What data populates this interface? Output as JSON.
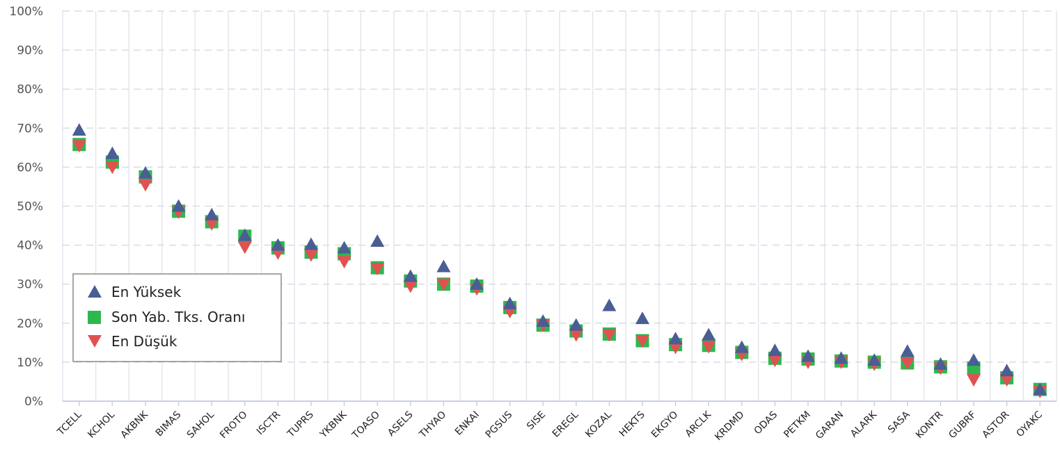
{
  "chart_data": {
    "type": "scatter",
    "categories": [
      "TCELL",
      "KCHOL",
      "AKBNK",
      "BIMAS",
      "SAHOL",
      "FROTO",
      "ISCTR",
      "TUPRS",
      "YKBNK",
      "TOASO",
      "ASELS",
      "THYAO",
      "ENKAI",
      "PGSUS",
      "SISE",
      "EREGL",
      "KOZAL",
      "HEKTS",
      "EKGYO",
      "ARCLK",
      "KRDMD",
      "ODAS",
      "PETKM",
      "GARAN",
      "ALARK",
      "SASA",
      "KONTR",
      "GUBRF",
      "ASTOR",
      "OYAKC"
    ],
    "series": [
      {
        "name": "En Yüksek",
        "marker": "triangle-up",
        "color": "#4a5d95",
        "values": [
          69.5,
          63.5,
          58.5,
          50.0,
          47.8,
          42.5,
          40.0,
          40.2,
          39.3,
          41.0,
          32.0,
          34.5,
          30.0,
          25.0,
          20.5,
          19.5,
          24.5,
          21.2,
          16.0,
          17.0,
          13.8,
          13.0,
          11.5,
          11.0,
          10.5,
          12.8,
          9.5,
          10.5,
          7.8,
          3.0
        ]
      },
      {
        "name": "Son Yab. Tks. Oranı",
        "marker": "square",
        "color": "#2db84d",
        "values": [
          65.8,
          61.3,
          57.5,
          48.7,
          46.0,
          42.3,
          39.3,
          38.2,
          37.8,
          34.2,
          30.8,
          30.0,
          29.5,
          24.0,
          19.5,
          18.0,
          17.2,
          15.5,
          14.5,
          14.3,
          12.5,
          11.0,
          10.8,
          10.3,
          10.0,
          9.8,
          8.8,
          8.5,
          6.0,
          3.0
        ]
      },
      {
        "name": "En Düşük",
        "marker": "triangle-down",
        "color": "#e05252",
        "values": [
          65.5,
          60.0,
          55.5,
          48.5,
          45.5,
          39.5,
          38.0,
          37.5,
          35.8,
          34.0,
          29.5,
          30.0,
          28.8,
          23.0,
          19.5,
          17.0,
          17.0,
          15.5,
          13.8,
          14.0,
          12.0,
          10.5,
          10.0,
          10.0,
          9.5,
          9.8,
          8.5,
          5.5,
          5.5,
          2.5
        ]
      }
    ],
    "y_ticks": [
      "0%",
      "10%",
      "20%",
      "30%",
      "40%",
      "50%",
      "60%",
      "70%",
      "80%",
      "90%",
      "100%"
    ],
    "ylim": [
      0,
      100
    ],
    "grid": true,
    "legend_position": "left-middle"
  },
  "legend": {
    "items": [
      "En Yüksek",
      "Son Yab. Tks. Oranı",
      "En Düşük"
    ]
  }
}
